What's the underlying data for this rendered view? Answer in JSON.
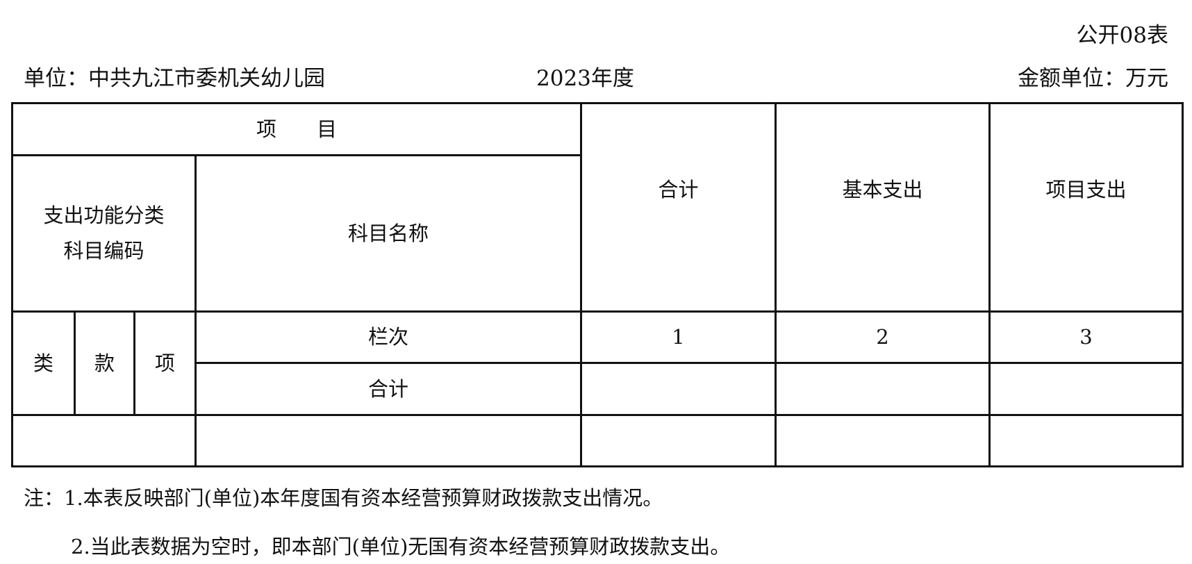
{
  "form_code": "公开08表",
  "unit_label": "单位：中共九江市委机关幼儿园",
  "year": "2023年度",
  "amount_unit": "金额单位：万元",
  "table": {
    "header_item": "项　　目",
    "code_header": [
      "支出功能分类",
      "科目编码"
    ],
    "name_header": "科目名称",
    "col_total": "合计",
    "col_basic": "基本支出",
    "col_project": "项目支出",
    "sub_lei": "类",
    "sub_kuan": "款",
    "sub_xiang": "项",
    "row_index_label": "栏次",
    "row_index_values": [
      "1",
      "2",
      "3"
    ],
    "total_row_label": "合计",
    "total_row_values": [
      "",
      "",
      ""
    ],
    "data_rows": [
      {
        "code": "",
        "name": "",
        "total": "",
        "basic": "",
        "project": ""
      }
    ]
  },
  "notes": [
    "注：1.本表反映部门(单位)本年度国有资本经营预算财政拨款支出情况。",
    "2.当此表数据为空时，即本部门(单位)无国有资本经营预算财政拨款支出。"
  ]
}
